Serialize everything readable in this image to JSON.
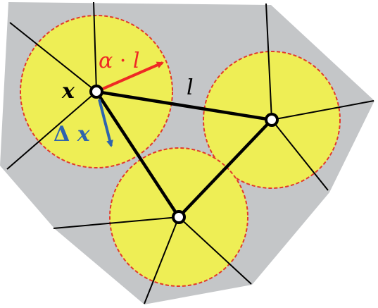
{
  "diagram": {
    "colors": {
      "background": "#ffffff",
      "region_fill": "#c4c6c8",
      "circle_fill": "#eeee55",
      "circle_outline": "#e23a2a",
      "edge": "#000000",
      "node_fill": "#ffffff",
      "step_arrow": "#ee2a24",
      "displacement_arrow": "#2f64ad",
      "label": "#000000"
    },
    "labels": {
      "position": "x",
      "edge_length": "l",
      "radius_alpha": "α",
      "radius_dot": "·",
      "radius_l": "l",
      "displacement_delta": "Δ",
      "displacement_x": "x"
    },
    "nodes": [
      {
        "name": "node-x",
        "label": "x"
      },
      {
        "name": "node-right"
      },
      {
        "name": "node-bottom"
      }
    ]
  }
}
